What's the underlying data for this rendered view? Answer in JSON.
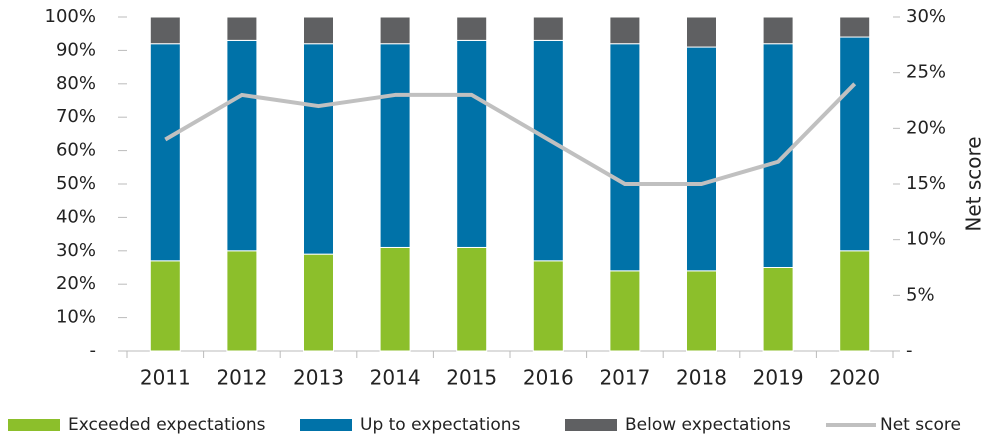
{
  "chart_data": {
    "type": "stacked-bar-line",
    "categories": [
      "2011",
      "2012",
      "2013",
      "2014",
      "2015",
      "2016",
      "2017",
      "2018",
      "2019",
      "2020"
    ],
    "series": [
      {
        "name": "Exceeded expectations",
        "color": "#8cbf2b",
        "values": [
          27,
          30,
          29,
          31,
          31,
          27,
          24,
          24,
          25,
          30
        ]
      },
      {
        "name": "Up to expectations",
        "color": "#0072a8",
        "values": [
          65,
          63,
          63,
          61,
          62,
          66,
          68,
          67,
          67,
          64
        ]
      },
      {
        "name": "Below expectations",
        "color": "#5f6062",
        "values": [
          8,
          7,
          8,
          8,
          7,
          7,
          8,
          9,
          8,
          6
        ]
      },
      {
        "name": "Net score",
        "color": "#c0c0c0",
        "axis": "y2",
        "type": "line",
        "values": [
          19,
          23,
          22,
          23,
          23,
          19,
          15,
          15,
          17,
          24
        ]
      }
    ],
    "ylim": [
      0,
      100
    ],
    "yticks": [
      {
        "value": 0,
        "label": "-"
      },
      {
        "value": 10,
        "label": "10%"
      },
      {
        "value": 20,
        "label": "20%"
      },
      {
        "value": 30,
        "label": "30%"
      },
      {
        "value": 40,
        "label": "40%"
      },
      {
        "value": 50,
        "label": "50%"
      },
      {
        "value": 60,
        "label": "60%"
      },
      {
        "value": 70,
        "label": "70%"
      },
      {
        "value": 80,
        "label": "80%"
      },
      {
        "value": 90,
        "label": "90%"
      },
      {
        "value": 100,
        "label": "100%"
      }
    ],
    "y2label": "Net score",
    "y2lim": [
      0,
      30
    ],
    "y2ticks": [
      {
        "value": 0,
        "label": "-"
      },
      {
        "value": 5,
        "label": "5%"
      },
      {
        "value": 10,
        "label": "10%"
      },
      {
        "value": 15,
        "label": "15%"
      },
      {
        "value": 20,
        "label": "20%"
      },
      {
        "value": 25,
        "label": "25%"
      },
      {
        "value": 30,
        "label": "30%"
      }
    ],
    "legend": "bottom"
  }
}
